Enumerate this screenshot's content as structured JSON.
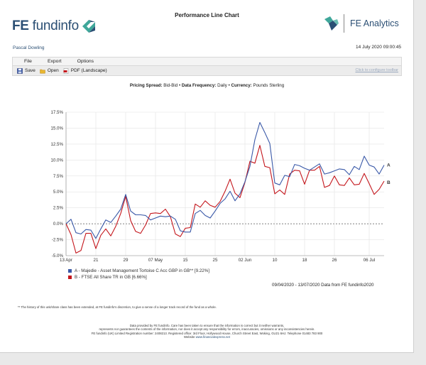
{
  "header": {
    "logo_left_fe": "FE",
    "logo_left_name": "fundinfo",
    "title": "Performance Line Chart",
    "logo_right_name": "FE Analytics",
    "user": "Pascal Dowling",
    "datetime": "14 July 2020 09:00:45"
  },
  "menu": {
    "file": "File",
    "export": "Export",
    "options": "Options"
  },
  "toolbar": {
    "save": "Save",
    "open": "Open",
    "pdf": "PDF (Landscape)",
    "configure": "Click to configure toolbar"
  },
  "subheading": {
    "spread_label": "Pricing Spread:",
    "spread_value": "Bid-Bid",
    "freq_label": "Data Frequency:",
    "freq_value": "Daily",
    "currency_label": "Currency:",
    "currency_value": "Pounds Sterling",
    "bullet": "•"
  },
  "colors": {
    "series_a": "#3a59a8",
    "series_b": "#c4161c",
    "zero_line": "#555555",
    "grid": "#e3e3e3"
  },
  "chart_data": {
    "type": "line",
    "ylim": [
      -5.0,
      17.5
    ],
    "yticks": [
      "-5.0%",
      "-2.5%",
      "0.0%",
      "2.5%",
      "5.0%",
      "7.5%",
      "10.0%",
      "12.5%",
      "15.0%",
      "17.5%"
    ],
    "xticks": [
      {
        "label": "13 Apr",
        "idx": 0
      },
      {
        "label": "21",
        "idx": 6
      },
      {
        "label": "29",
        "idx": 12
      },
      {
        "label": "07 May",
        "idx": 18
      },
      {
        "label": "15",
        "idx": 24
      },
      {
        "label": "25",
        "idx": 30
      },
      {
        "label": "02 Jun",
        "idx": 36
      },
      {
        "label": "10",
        "idx": 42
      },
      {
        "label": "18",
        "idx": 48
      },
      {
        "label": "26",
        "idx": 54
      },
      {
        "label": "06 Jul",
        "idx": 61
      }
    ],
    "series": [
      {
        "name": "A - Majedie - Asset Management Tortoise C Acc GBP in GB** [9.22%]",
        "end_label": "A",
        "values": [
          0,
          0.7,
          -1.4,
          -1.6,
          -0.9,
          -1.0,
          -2.3,
          -0.8,
          0.6,
          0.2,
          1.2,
          2.3,
          4.6,
          2.0,
          1.4,
          1.4,
          1.3,
          0.6,
          0.9,
          1.2,
          1.1,
          1.2,
          0.7,
          -1.1,
          -1.3,
          -1.3,
          1.6,
          2.1,
          1.3,
          0.9,
          2.0,
          3.2,
          3.9,
          5.1,
          3.6,
          4.7,
          6.6,
          9.0,
          13.2,
          15.9,
          14.3,
          12.6,
          6.4,
          6.1,
          7.6,
          7.4,
          9.3,
          9.1,
          8.7,
          8.4,
          8.9,
          9.4,
          7.8,
          8.0,
          8.3,
          8.6,
          8.5,
          7.7,
          9.0,
          8.5,
          10.6,
          9.2,
          8.9,
          7.8,
          9.2
        ]
      },
      {
        "name": "B - FTSE All Share TR in GB [6.66%]",
        "end_label": "B",
        "values": [
          0,
          -1.7,
          -4.6,
          -4.2,
          -1.5,
          -1.5,
          -3.9,
          -1.8,
          -0.8,
          -1.9,
          -0.4,
          1.6,
          4.3,
          0.5,
          -1.2,
          -1.5,
          -0.2,
          1.6,
          1.7,
          1.6,
          2.3,
          1.1,
          -1.6,
          -2.0,
          -0.7,
          -0.6,
          3.1,
          2.6,
          3.6,
          2.9,
          2.6,
          3.5,
          5.1,
          7.0,
          4.8,
          4.1,
          6.5,
          9.8,
          9.5,
          12.3,
          9.0,
          8.8,
          4.7,
          5.3,
          4.6,
          7.8,
          8.4,
          8.3,
          6.2,
          8.4,
          8.4,
          9.0,
          5.7,
          6.0,
          7.5,
          6.1,
          6.0,
          7.2,
          6.1,
          6.2,
          7.9,
          6.3,
          4.6,
          5.4,
          6.7
        ]
      }
    ]
  },
  "date_range": "09/04/2020 - 13/07/2020 Data from FE fundinfo2020",
  "footnote": "** The history of this unit/share class has been extended, at FE fundinfo's discretion, to give a sense of a longer track record of the fund as a whole.",
  "disclaimer": {
    "line1": "Data provided by FE fundinfo. Care has been taken to ensure that the information is correct but it neither warrants,",
    "line2": "represents nor guarantees the contents of the information, nor does it accept any responsibility for errors, inaccuracies, omissions or any inconsistencies herein.",
    "line3": "FE fundinfo (UK) Limited Registration number: 2408213. Registered office: 3rd Floor, Hollywood House, Church Street East, Woking, GU21 6HJ. Telephone 01483 783 900",
    "line4_prefix": "Website",
    "link": "www.financialexpress.net"
  }
}
